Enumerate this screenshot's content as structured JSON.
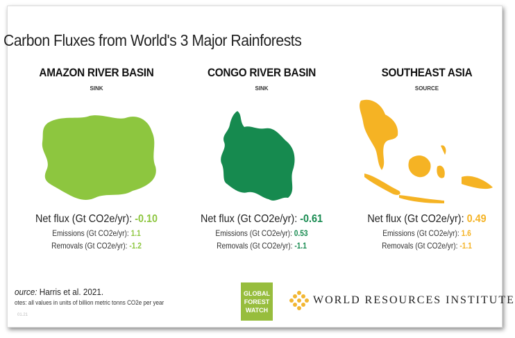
{
  "title": "Carbon Fluxes from World's 3 Major Rainforests",
  "columns": [
    {
      "region": "AMAZON RIVER BASIN",
      "status": "SINK",
      "color": "#8dc63f",
      "net_label": "Net flux (Gt CO2e/yr): ",
      "net": "-0.10",
      "emissions_label": "Emissions (Gt CO2e/yr): ",
      "emissions": "1.1",
      "removals_label": "Removals (Gt CO2e/yr): ",
      "removals": "-1.2"
    },
    {
      "region": "CONGO RIVER BASIN",
      "status": "SINK",
      "color": "#168a4f",
      "net_label": "Net flux (Gt CO2e/yr): ",
      "net": "-0.61",
      "emissions_label": "Emissions (Gt CO2e/yr): ",
      "emissions": "0.53",
      "removals_label": "Removals (Gt CO2e/yr): ",
      "removals": "-1.1"
    },
    {
      "region": "SOUTHEAST ASIA",
      "status": "SOURCE",
      "color": "#f5b324",
      "net_label": "Net flux (Gt CO2e/yr): ",
      "net": "0.49",
      "emissions_label": "Emissions (Gt CO2e/yr): ",
      "emissions": "1.6",
      "removals_label": "Removals (Gt CO2e/yr): ",
      "removals": "-1.1"
    }
  ],
  "footer": {
    "source_label": "ource:",
    "source": " Harris et al. 2021.",
    "notes": "otes: all values in units of billion metric tonns CO2e per year",
    "date": "01.21",
    "gfw_logo": [
      "GLOBAL",
      "FOREST",
      "WATCH"
    ],
    "wri_logo": "WORLD RESOURCES INSTITUTE"
  }
}
